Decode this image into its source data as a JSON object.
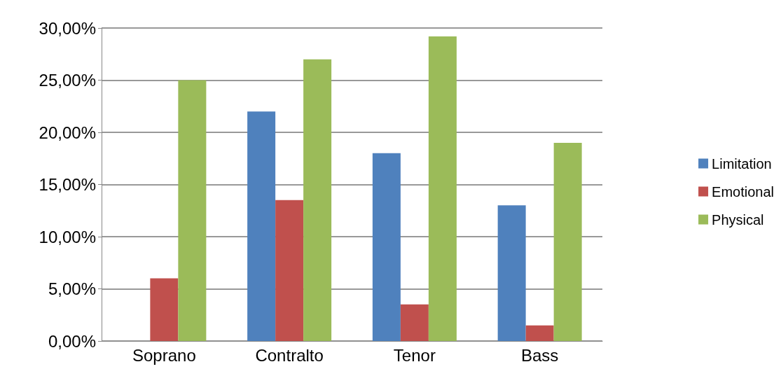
{
  "chart_data": {
    "type": "bar",
    "categories": [
      "Soprano",
      "Contralto",
      "Tenor",
      "Bass"
    ],
    "series": [
      {
        "name": "Limitation",
        "color": "#4f81bd",
        "values": [
          0,
          22,
          18,
          13
        ]
      },
      {
        "name": "Emotional",
        "color": "#c0504d",
        "values": [
          6,
          13.5,
          3.5,
          1.5
        ]
      },
      {
        "name": "Physical",
        "color": "#9bbb59",
        "values": [
          25,
          27,
          29.2,
          19
        ]
      }
    ],
    "ylim": [
      0,
      30
    ],
    "yticks": [
      {
        "value": 0,
        "label": "0,00%"
      },
      {
        "value": 5,
        "label": "5,00%"
      },
      {
        "value": 10,
        "label": "10,00%"
      },
      {
        "value": 15,
        "label": "15,00%"
      },
      {
        "value": 20,
        "label": "20,00%"
      },
      {
        "value": 25,
        "label": "25,00%"
      },
      {
        "value": 30,
        "label": "30,00%"
      }
    ],
    "grid": "y",
    "legend": "right"
  }
}
